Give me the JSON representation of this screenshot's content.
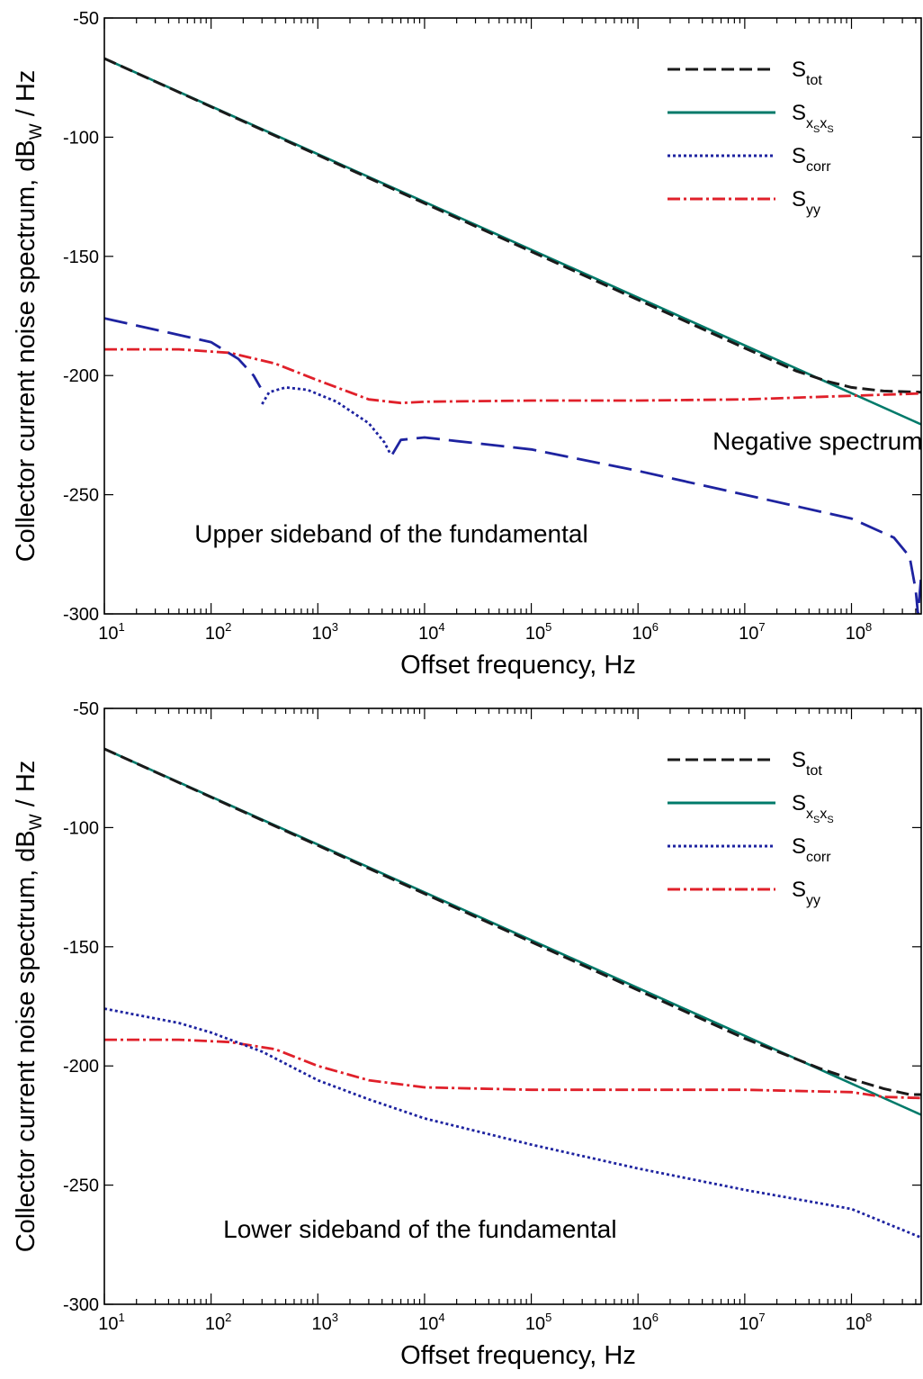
{
  "chart_data": [
    {
      "type": "line",
      "xscale": "log",
      "xlim": [
        10,
        450000000
      ],
      "ylim": [
        -300,
        -50
      ],
      "yticks": [
        -50,
        -100,
        -150,
        -200,
        -250,
        -300
      ],
      "xticks": [
        {
          "value": 10,
          "base": "10",
          "exp": "1"
        },
        {
          "value": 100,
          "base": "10",
          "exp": "2"
        },
        {
          "value": 1000,
          "base": "10",
          "exp": "3"
        },
        {
          "value": 10000,
          "base": "10",
          "exp": "4"
        },
        {
          "value": 100000,
          "base": "10",
          "exp": "5"
        },
        {
          "value": 1000000,
          "base": "10",
          "exp": "6"
        },
        {
          "value": 10000000,
          "base": "10",
          "exp": "7"
        },
        {
          "value": 100000000,
          "base": "10",
          "exp": "8"
        }
      ],
      "xlabel": "Offset frequency, Hz",
      "ylabel": {
        "main": "Collector current noise spectrum, dB",
        "sub": "W",
        "tail": " / Hz"
      },
      "annotations": [
        {
          "text": "Upper sideband of the fundamental",
          "x": 70,
          "y": -270
        },
        {
          "text": "Negative spectrum value",
          "x": 5000000,
          "y": -231
        }
      ],
      "legend": {
        "placement": "top-right",
        "entries": [
          {
            "key": "S_tot",
            "main": "S",
            "sub": "tot",
            "color": "#1a1a1a",
            "dash": "14 6",
            "width": 3
          },
          {
            "key": "S_xsxs",
            "main": "S",
            "sub": "x",
            "subsub": "S",
            "sub2": "x",
            "subsub2": "S",
            "color": "#007a6a",
            "dash": "",
            "width": 3
          },
          {
            "key": "S_corr",
            "main": "S",
            "sub": "corr",
            "color": "#1e23a0",
            "dash": "3 3",
            "width": 3
          },
          {
            "key": "S_yy",
            "main": "S",
            "sub": "yy",
            "color": "#e0202a",
            "dash": "14 4 3 4",
            "width": 3
          }
        ]
      },
      "series": [
        {
          "key": "S_xsxs",
          "color": "#007a6a",
          "dash": "",
          "width": 2.6,
          "x": [
            10,
            450000000
          ],
          "y": [
            -67,
            -220.5
          ]
        },
        {
          "key": "S_tot",
          "color": "#1a1a1a",
          "dash": "14 6",
          "width": 3,
          "x": [
            10,
            10000000,
            30000000,
            60000000,
            100000000,
            200000000,
            450000000
          ],
          "y": [
            -67,
            -188.5,
            -198,
            -202.5,
            -205,
            -206.5,
            -207
          ]
        },
        {
          "key": "S_yy",
          "color": "#e0202a",
          "dash": "14 4 3 4",
          "width": 2.8,
          "x": [
            10,
            50,
            150,
            400,
            1000,
            3000,
            6000,
            10000,
            100000,
            1000000,
            10000000,
            100000000,
            450000000
          ],
          "y": [
            -189,
            -189,
            -190.5,
            -195,
            -202,
            -210,
            -211.5,
            -211,
            -210.5,
            -210.5,
            -210,
            -208.5,
            -207.5
          ]
        },
        {
          "key": "S_corr",
          "color": "#1e23a0",
          "dash": "26 10",
          "width": 2.8,
          "x": [
            10,
            100,
            180,
            250,
            290
          ],
          "y": [
            -176,
            -186,
            -193,
            -200,
            -205
          ]
        },
        {
          "key": "S_corr",
          "color": "#1e23a0",
          "dash": "3 3",
          "width": 2.8,
          "x": [
            300,
            350,
            500,
            800,
            1500,
            3000,
            4200,
            4800
          ],
          "y": [
            -212,
            -207,
            -205,
            -206,
            -211,
            -220,
            -228,
            -233
          ]
        },
        {
          "key": "S_corr",
          "color": "#1e23a0",
          "dash": "26 10",
          "width": 2.8,
          "x": [
            5000,
            6000,
            10000,
            100000,
            1000000,
            10000000,
            100000000,
            250000000,
            350000000,
            400000000,
            420000000,
            450000000
          ],
          "y": [
            -233,
            -227,
            -226,
            -231,
            -240,
            -250,
            -260,
            -268,
            -276,
            -290,
            -300,
            -284
          ]
        }
      ]
    },
    {
      "type": "line",
      "xscale": "log",
      "xlim": [
        10,
        450000000
      ],
      "ylim": [
        -300,
        -50
      ],
      "yticks": [
        -50,
        -100,
        -150,
        -200,
        -250,
        -300
      ],
      "xticks": [
        {
          "value": 10,
          "base": "10",
          "exp": "1"
        },
        {
          "value": 100,
          "base": "10",
          "exp": "2"
        },
        {
          "value": 1000,
          "base": "10",
          "exp": "3"
        },
        {
          "value": 10000,
          "base": "10",
          "exp": "4"
        },
        {
          "value": 100000,
          "base": "10",
          "exp": "5"
        },
        {
          "value": 1000000,
          "base": "10",
          "exp": "6"
        },
        {
          "value": 10000000,
          "base": "10",
          "exp": "7"
        },
        {
          "value": 100000000,
          "base": "10",
          "exp": "8"
        }
      ],
      "xlabel": "Offset frequency, Hz",
      "ylabel": {
        "main": "Collector current noise spectrum, dB",
        "sub": "W",
        "tail": " / Hz"
      },
      "annotations": [
        {
          "text": "Lower sideband of the fundamental",
          "x": 130,
          "y": -272
        }
      ],
      "legend": {
        "placement": "top-right",
        "entries": [
          {
            "key": "S_tot",
            "main": "S",
            "sub": "tot",
            "color": "#1a1a1a",
            "dash": "14 6",
            "width": 3
          },
          {
            "key": "S_xsxs",
            "main": "S",
            "sub": "x",
            "subsub": "S",
            "sub2": "x",
            "subsub2": "S",
            "color": "#007a6a",
            "dash": "",
            "width": 3
          },
          {
            "key": "S_corr",
            "main": "S",
            "sub": "corr",
            "color": "#1e23a0",
            "dash": "3 3",
            "width": 3
          },
          {
            "key": "S_yy",
            "main": "S",
            "sub": "yy",
            "color": "#e0202a",
            "dash": "14 4 3 4",
            "width": 3
          }
        ]
      },
      "series": [
        {
          "key": "S_xsxs",
          "color": "#007a6a",
          "dash": "",
          "width": 2.6,
          "x": [
            10,
            450000000
          ],
          "y": [
            -67,
            -220.5
          ]
        },
        {
          "key": "S_tot",
          "color": "#1a1a1a",
          "dash": "14 6",
          "width": 3,
          "x": [
            10,
            10000000,
            50000000,
            100000000,
            200000000,
            350000000,
            450000000
          ],
          "y": [
            -67,
            -188.5,
            -201,
            -205.5,
            -209.5,
            -212,
            -212
          ]
        },
        {
          "key": "S_yy",
          "color": "#e0202a",
          "dash": "14 4 3 4",
          "width": 2.8,
          "x": [
            10,
            50,
            150,
            400,
            1000,
            3000,
            10000,
            100000,
            1000000,
            10000000,
            100000000,
            200000000,
            450000000
          ],
          "y": [
            -189,
            -189,
            -190,
            -193,
            -200,
            -206,
            -209,
            -210,
            -210,
            -210,
            -211,
            -213,
            -213.5
          ]
        },
        {
          "key": "S_corr",
          "color": "#1e23a0",
          "dash": "3 3",
          "width": 2.8,
          "x": [
            10,
            50,
            100,
            300,
            1000,
            3000,
            10000,
            100000,
            1000000,
            10000000,
            100000000,
            450000000
          ],
          "y": [
            -176,
            -182,
            -186,
            -194,
            -206,
            -214,
            -222,
            -233,
            -243,
            -252,
            -260,
            -272
          ]
        }
      ]
    }
  ]
}
